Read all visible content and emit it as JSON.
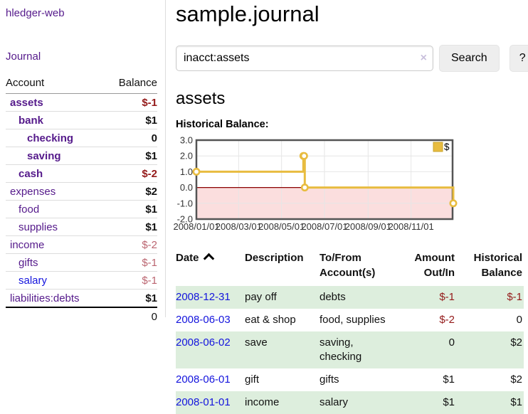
{
  "app_title": "hledger-web",
  "colors": {
    "purple": "#551a8b",
    "blue": "#1414dd",
    "negative": "#941a1a",
    "negative_soft": "#bb6570",
    "row_green": "#ddeedd",
    "button_bg": "#eeeeee",
    "gold": "#e8bc40"
  },
  "icons": {
    "clear_search": "×",
    "date_sort": "chevron-up"
  },
  "sidebar": {
    "journal_link": "Journal",
    "col_account": "Account",
    "col_balance": "Balance",
    "accounts": [
      {
        "name": "assets",
        "balance": "$-1",
        "indent": 0,
        "name_bold": true,
        "balance_bold": true,
        "balance_class": "neg-strong",
        "link_color": "purple"
      },
      {
        "name": "bank",
        "balance": "$1",
        "indent": 1,
        "name_bold": true,
        "balance_bold": true,
        "balance_class": "",
        "link_color": "purple"
      },
      {
        "name": "checking",
        "balance": "0",
        "indent": 2,
        "name_bold": true,
        "balance_bold": true,
        "balance_class": "",
        "link_color": "purple"
      },
      {
        "name": "saving",
        "balance": "$1",
        "indent": 2,
        "name_bold": true,
        "balance_bold": true,
        "balance_class": "",
        "link_color": "purple"
      },
      {
        "name": "cash",
        "balance": "$-2",
        "indent": 1,
        "name_bold": true,
        "balance_bold": true,
        "balance_class": "neg-strong",
        "link_color": "purple"
      },
      {
        "name": "expenses",
        "balance": "$2",
        "indent": 0,
        "name_bold": false,
        "balance_bold": true,
        "balance_class": "",
        "link_color": "purple"
      },
      {
        "name": "food",
        "balance": "$1",
        "indent": 1,
        "name_bold": false,
        "balance_bold": true,
        "balance_class": "",
        "link_color": "purple"
      },
      {
        "name": "supplies",
        "balance": "$1",
        "indent": 1,
        "name_bold": false,
        "balance_bold": true,
        "balance_class": "",
        "link_color": "purple"
      },
      {
        "name": "income",
        "balance": "$-2",
        "indent": 0,
        "name_bold": false,
        "balance_bold": false,
        "balance_class": "neg-soft",
        "link_color": "purple"
      },
      {
        "name": "gifts",
        "balance": "$-1",
        "indent": 1,
        "name_bold": false,
        "balance_bold": false,
        "balance_class": "neg-soft",
        "link_color": "purple"
      },
      {
        "name": "salary",
        "balance": "$-1",
        "indent": 1,
        "name_bold": false,
        "balance_bold": false,
        "balance_class": "neg-soft",
        "link_color": "blue"
      },
      {
        "name": "liabilities:debts",
        "balance": "$1",
        "indent": 0,
        "name_bold": false,
        "balance_bold": true,
        "balance_class": "",
        "link_color": "purple"
      }
    ],
    "total": "0"
  },
  "main": {
    "title": "sample.journal",
    "search": {
      "value": "inacct:assets",
      "search_button": "Search",
      "help_button": "?"
    },
    "account_heading": "assets",
    "chart_heading": "Historical Balance:"
  },
  "chart_data": {
    "type": "line",
    "step": true,
    "title": "Historical Balance",
    "series": [
      {
        "name": "$",
        "color": "#e8bc40",
        "points": [
          [
            "2008-01-01",
            1.0
          ],
          [
            "2008-06-01",
            2.0
          ],
          [
            "2008-06-02",
            2.0
          ],
          [
            "2008-06-03",
            0.0
          ],
          [
            "2008-12-31",
            -1.0
          ]
        ]
      }
    ],
    "x_range": [
      "2008-01-01",
      "2008-12-31"
    ],
    "x_tick_labels": [
      "2008/01/01",
      "2008/03/01",
      "2008/05/01",
      "2008/07/01",
      "2008/09/01",
      "2008/11/01"
    ],
    "x_tick_days": [
      0,
      60,
      121,
      182,
      244,
      305
    ],
    "x_grid_days": [
      60,
      121,
      182,
      244,
      305
    ],
    "y_ticks": [
      3.0,
      2.0,
      1.0,
      0.0,
      -1.0,
      -2.0
    ],
    "ylim": [
      -2.0,
      3.0
    ],
    "legend_label": "$",
    "legend_position": "top-right",
    "grid": true,
    "negative_fill": "#fbdede",
    "zero_line_color": "#8b0000",
    "border_color": "#545454",
    "grid_color": "#e6e6e6"
  },
  "register": {
    "headers": {
      "date": "Date",
      "description": "Description",
      "accounts": "To/From Account(s)",
      "amount": "Amount Out/In",
      "balance": "Historical Balance"
    },
    "rows": [
      {
        "date": "2008-12-31",
        "description": "pay off",
        "accounts": "debts",
        "amount": "$-1",
        "balance": "$-1",
        "amount_neg": true,
        "balance_neg": true
      },
      {
        "date": "2008-06-03",
        "description": "eat & shop",
        "accounts": "food, supplies",
        "amount": "$-2",
        "balance": "0",
        "amount_neg": true,
        "balance_neg": false
      },
      {
        "date": "2008-06-02",
        "description": "save",
        "accounts": "saving, checking",
        "amount": "0",
        "balance": "$2",
        "amount_neg": false,
        "balance_neg": false
      },
      {
        "date": "2008-06-01",
        "description": "gift",
        "accounts": "gifts",
        "amount": "$1",
        "balance": "$2",
        "amount_neg": false,
        "balance_neg": false
      },
      {
        "date": "2008-01-01",
        "description": "income",
        "accounts": "salary",
        "amount": "$1",
        "balance": "$1",
        "amount_neg": false,
        "balance_neg": false
      }
    ]
  }
}
